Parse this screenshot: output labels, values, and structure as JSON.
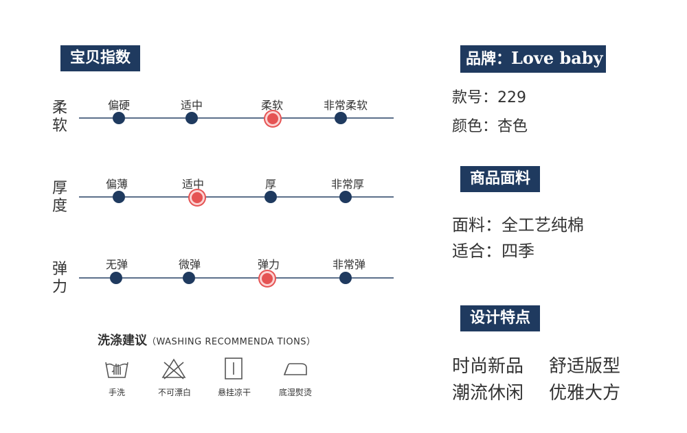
{
  "index_section": {
    "title": "宝贝指数",
    "rows": [
      {
        "label": "柔软",
        "options": [
          "偏硬",
          "适中",
          "柔软",
          "非常柔软"
        ],
        "selected": 2
      },
      {
        "label": "厚度",
        "options": [
          "偏薄",
          "适中",
          "厚",
          "非常厚"
        ],
        "selected": 1
      },
      {
        "label": "弹力",
        "options": [
          "无弹",
          "微弹",
          "弹力",
          "非常弹"
        ],
        "selected": 2
      }
    ]
  },
  "care": {
    "title": "洗涤建议",
    "subtitle": "（WASHING RECOMMENDA TIONS）",
    "items": [
      {
        "icon": "hand-wash-icon",
        "label": "手洗"
      },
      {
        "icon": "no-bleach-icon",
        "label": "不可漂白"
      },
      {
        "icon": "hang-dry-icon",
        "label": "悬挂凉干"
      },
      {
        "icon": "iron-icon",
        "label": "底湿熨烫"
      }
    ]
  },
  "brand": {
    "label": "品牌：",
    "value": "Love baby"
  },
  "product": {
    "style_no": "款号：229",
    "color": "颜色：杏色"
  },
  "fabric_section": {
    "title": "商品面料",
    "material": "面料：全工艺纯棉",
    "season": "适合：四季"
  },
  "design_section": {
    "title": "设计特点",
    "features": [
      "时尚新品",
      "舒适版型",
      "潮流休闲",
      "优雅大方"
    ]
  },
  "colors": {
    "navy": "#1f3a5f",
    "accent_red": "#e55353"
  }
}
